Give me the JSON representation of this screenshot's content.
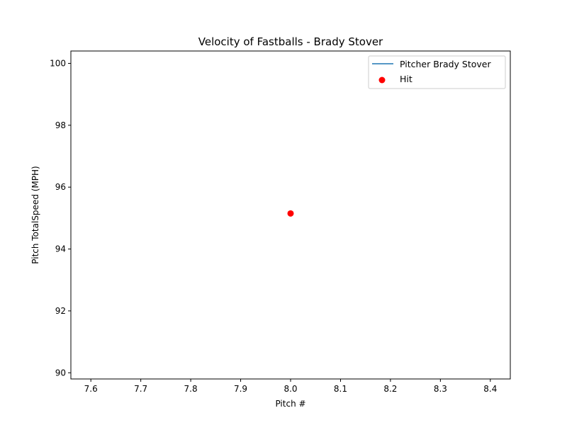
{
  "chart_data": {
    "type": "scatter",
    "title": "Velocity of Fastballs - Brady Stover",
    "xlabel": "Pitch #",
    "ylabel": "Pitch TotalSpeed (MPH)",
    "xlim": [
      7.56,
      8.44
    ],
    "ylim": [
      89.8,
      100.4
    ],
    "xticks": [
      7.6,
      7.7,
      7.8,
      7.9,
      8.0,
      8.1,
      8.2,
      8.3,
      8.4
    ],
    "xtick_labels": [
      "7.6",
      "7.7",
      "7.8",
      "7.9",
      "8.0",
      "8.1",
      "8.2",
      "8.3",
      "8.4"
    ],
    "yticks": [
      90,
      92,
      94,
      96,
      98,
      100
    ],
    "ytick_labels": [
      "90",
      "92",
      "94",
      "96",
      "98",
      "100"
    ],
    "grid": false,
    "legend_position": "top-right",
    "series": [
      {
        "name": "Pitcher Brady Stover",
        "kind": "line",
        "color": "#1f77b4",
        "points": [
          {
            "x": 8.0,
            "y": 95.15
          }
        ]
      },
      {
        "name": "Hit",
        "kind": "scatter",
        "color": "#ff0000",
        "points": [
          {
            "x": 8.0,
            "y": 95.15
          }
        ]
      }
    ]
  }
}
